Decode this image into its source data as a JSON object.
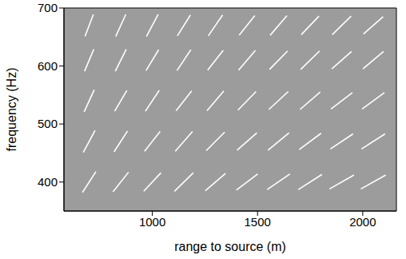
{
  "chart_data": {
    "type": "segments",
    "x_label": "range to source (m)",
    "y_label": "frequency (Hz)",
    "xlim": [
      580,
      2160
    ],
    "ylim": [
      350,
      700
    ],
    "xticks": [
      1000,
      1500,
      2000
    ],
    "yticks": [
      400,
      500,
      600,
      700
    ],
    "grid": false,
    "color": "#ffffff",
    "segments": [
      [
        668,
        382,
        732,
        418
      ],
      [
        672,
        451,
        728,
        489
      ],
      [
        676,
        521,
        724,
        559
      ],
      [
        678,
        591,
        722,
        629
      ],
      [
        680,
        651,
        720,
        689
      ],
      [
        813,
        383,
        887,
        417
      ],
      [
        818,
        452,
        882,
        488
      ],
      [
        821,
        522,
        879,
        558
      ],
      [
        824,
        591,
        876,
        629
      ],
      [
        826,
        651,
        874,
        689
      ],
      [
        959,
        384,
        1041,
        416
      ],
      [
        963,
        453,
        1037,
        487
      ],
      [
        967,
        522,
        1033,
        558
      ],
      [
        970,
        592,
        1030,
        628
      ],
      [
        972,
        651,
        1028,
        689
      ],
      [
        1105,
        384,
        1195,
        416
      ],
      [
        1109,
        453,
        1191,
        487
      ],
      [
        1113,
        523,
        1187,
        557
      ],
      [
        1117,
        592,
        1183,
        628
      ],
      [
        1119,
        652,
        1181,
        688
      ],
      [
        1252,
        385,
        1348,
        415
      ],
      [
        1256,
        454,
        1344,
        486
      ],
      [
        1260,
        523,
        1340,
        557
      ],
      [
        1263,
        593,
        1337,
        627
      ],
      [
        1266,
        652,
        1334,
        688
      ],
      [
        1399,
        386,
        1501,
        414
      ],
      [
        1403,
        455,
        1497,
        485
      ],
      [
        1407,
        524,
        1493,
        556
      ],
      [
        1410,
        593,
        1490,
        627
      ],
      [
        1413,
        653,
        1487,
        687
      ],
      [
        1546,
        387,
        1654,
        414
      ],
      [
        1550,
        455,
        1650,
        485
      ],
      [
        1554,
        525,
        1646,
        556
      ],
      [
        1557,
        594,
        1643,
        626
      ],
      [
        1560,
        653,
        1640,
        687
      ],
      [
        1694,
        387,
        1806,
        413
      ],
      [
        1698,
        456,
        1802,
        484
      ],
      [
        1702,
        525,
        1798,
        555
      ],
      [
        1705,
        594,
        1795,
        626
      ],
      [
        1708,
        654,
        1792,
        686
      ],
      [
        1842,
        388,
        1958,
        412
      ],
      [
        1846,
        457,
        1954,
        483
      ],
      [
        1849,
        526,
        1951,
        554
      ],
      [
        1853,
        595,
        1947,
        625
      ],
      [
        1855,
        654,
        1945,
        686
      ],
      [
        1991,
        388,
        2109,
        412
      ],
      [
        1994,
        457,
        2106,
        483
      ],
      [
        1997,
        526,
        2103,
        554
      ],
      [
        2001,
        595,
        2099,
        625
      ],
      [
        2003,
        655,
        2097,
        685
      ]
    ]
  }
}
